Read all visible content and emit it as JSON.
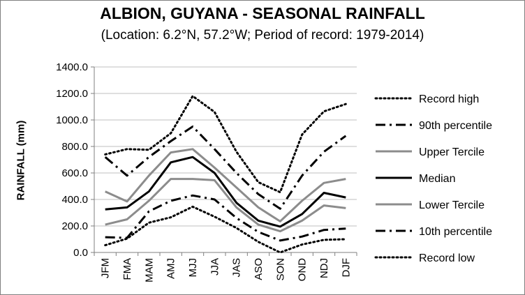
{
  "chart_data": {
    "type": "line",
    "title": "ALBION, GUYANA - SEASONAL RAINFALL",
    "subtitle": "(Location: 6.2°N, 57.2°W; Period of record: 1979-2014)",
    "ylabel": "RAINFALL (mm)",
    "xlabel": "",
    "ylim": [
      0,
      1400
    ],
    "yticks": [
      "0.0",
      "200.0",
      "400.0",
      "600.0",
      "800.0",
      "1000.0",
      "1200.0",
      "1400.0"
    ],
    "grid": true,
    "legend_position": "right",
    "categories": [
      "JFM",
      "FMA",
      "MAM",
      "AMJ",
      "MJJ",
      "JJA",
      "JAS",
      "ASO",
      "SON",
      "OND",
      "NDJ",
      "DJF"
    ],
    "series": [
      {
        "name": "Record high",
        "style": "dotted",
        "color": "#000000",
        "values": [
          740,
          780,
          775,
          900,
          1180,
          1060,
          760,
          530,
          455,
          890,
          1065,
          1120
        ]
      },
      {
        "name": "90th percentile",
        "style": "dashdot",
        "color": "#000000",
        "values": [
          720,
          580,
          720,
          840,
          950,
          780,
          600,
          440,
          330,
          580,
          760,
          880
        ]
      },
      {
        "name": "Upper Tercile",
        "style": "solid-gray",
        "color": "#8c8c8c",
        "values": [
          460,
          385,
          580,
          755,
          780,
          640,
          490,
          340,
          235,
          390,
          525,
          555
        ]
      },
      {
        "name": "Median",
        "style": "solid-black",
        "color": "#000000",
        "values": [
          325,
          340,
          460,
          680,
          720,
          600,
          375,
          240,
          195,
          290,
          450,
          415
        ]
      },
      {
        "name": "Lower Tercile",
        "style": "solid-gray",
        "color": "#8c8c8c",
        "values": [
          210,
          250,
          390,
          555,
          555,
          545,
          340,
          210,
          160,
          240,
          355,
          335
        ]
      },
      {
        "name": "10th percentile",
        "style": "dashdot",
        "color": "#000000",
        "values": [
          115,
          110,
          310,
          390,
          430,
          400,
          260,
          155,
          90,
          120,
          170,
          180
        ]
      },
      {
        "name": "Record low",
        "style": "dotted",
        "color": "#000000",
        "values": [
          55,
          105,
          225,
          265,
          345,
          270,
          185,
          80,
          0,
          60,
          95,
          100
        ]
      }
    ]
  }
}
